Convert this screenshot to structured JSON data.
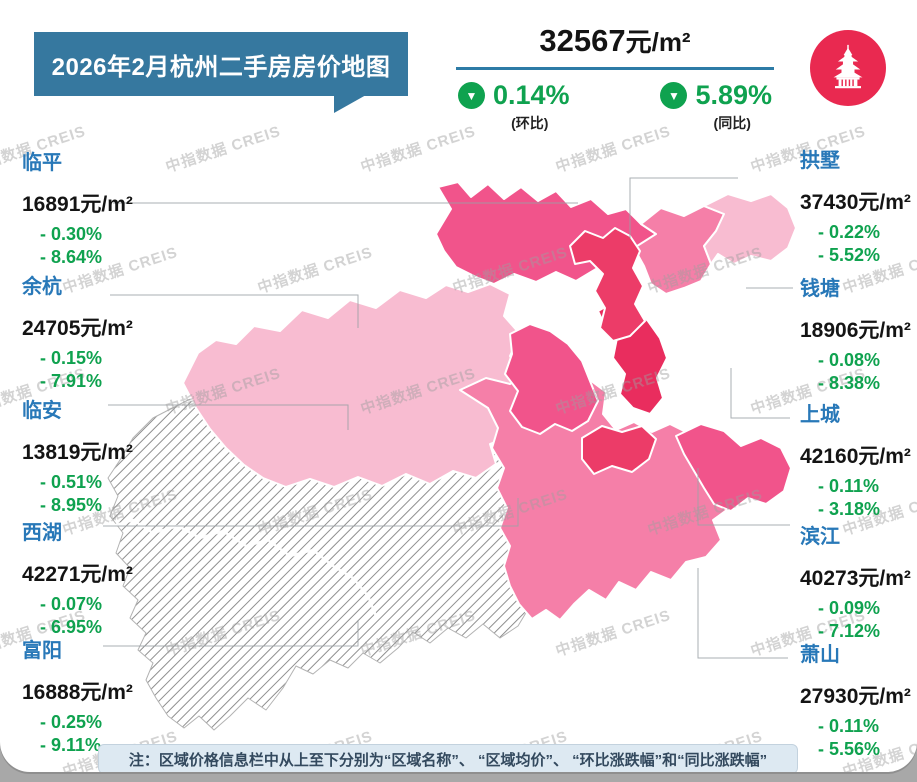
{
  "title_banner": {
    "text": "2026年2月杭州二手房房价地图"
  },
  "logo": {
    "label": "杭州雷峰塔标志"
  },
  "icons": {
    "down_arrow": "▼"
  },
  "city_summary": {
    "price_value": "32567",
    "price_unit": "元/m²",
    "mom": {
      "value": "0.14%",
      "label": "(环比)"
    },
    "yoy": {
      "value": "5.89%",
      "label": "(同比)"
    }
  },
  "watermark": {
    "text": "中指数据 CREIS"
  },
  "districts": {
    "left": [
      {
        "name": "临平",
        "price": "16891元/m²",
        "mom": "- 0.30%",
        "yoy": "- 8.64%"
      },
      {
        "name": "余杭",
        "price": "24705元/m²",
        "mom": "- 0.15%",
        "yoy": "- 7.91%"
      },
      {
        "name": "临安",
        "price": "13819元/m²",
        "mom": "- 0.51%",
        "yoy": "- 8.95%"
      },
      {
        "name": "西湖",
        "price": "42271元/m²",
        "mom": "- 0.07%",
        "yoy": "- 6.95%"
      },
      {
        "name": "富阳",
        "price": "16888元/m²",
        "mom": "- 0.25%",
        "yoy": "- 9.11%"
      }
    ],
    "right": [
      {
        "name": "拱墅",
        "price": "37430元/m²",
        "mom": "- 0.22%",
        "yoy": "- 5.52%"
      },
      {
        "name": "钱塘",
        "price": "18906元/m²",
        "mom": "- 0.08%",
        "yoy": "- 8.38%"
      },
      {
        "name": "上城",
        "price": "42160元/m²",
        "mom": "- 0.11%",
        "yoy": "- 3.18%"
      },
      {
        "name": "滨江",
        "price": "40273元/m²",
        "mom": "- 0.09%",
        "yoy": "- 7.12%"
      },
      {
        "name": "萧山",
        "price": "27930元/m²",
        "mom": "- 0.11%",
        "yoy": "- 5.56%"
      }
    ]
  },
  "footnote": {
    "text": "注：区域价格信息栏中从上至下分别为“区域名称”、 “区域均价”、 “环比涨跌幅”和“同比涨跌幅”"
  },
  "map": {
    "palette": {
      "light": "#f8bcd1",
      "medium": "#f57fa8",
      "medium_dark": "#f1548b",
      "dark": "#ec3c68",
      "darkest": "#e92d5e"
    },
    "hatched_meaning": "西部区域（临安、富阳方向）以灰色斜线填充"
  },
  "colors": {
    "banner_teal": "#36789f",
    "district_blue": "#2878b8",
    "stat_green": "#0fa24f",
    "logo_pink": "#e92950"
  },
  "chart_data": {
    "type": "choropleth_map",
    "title": "2026年2月杭州二手房房价地图",
    "unit": "元/m²",
    "city_average": {
      "price": 32567,
      "mom_pct": -0.14,
      "yoy_pct": -5.89
    },
    "regions": [
      {
        "name": "临平",
        "price": 16891,
        "mom_pct": -0.3,
        "yoy_pct": -8.64
      },
      {
        "name": "余杭",
        "price": 24705,
        "mom_pct": -0.15,
        "yoy_pct": -7.91
      },
      {
        "name": "临安",
        "price": 13819,
        "mom_pct": -0.51,
        "yoy_pct": -8.95
      },
      {
        "name": "西湖",
        "price": 42271,
        "mom_pct": -0.07,
        "yoy_pct": -6.95
      },
      {
        "name": "富阳",
        "price": 16888,
        "mom_pct": -0.25,
        "yoy_pct": -9.11
      },
      {
        "name": "拱墅",
        "price": 37430,
        "mom_pct": -0.22,
        "yoy_pct": -5.52
      },
      {
        "name": "钱塘",
        "price": 18906,
        "mom_pct": -0.08,
        "yoy_pct": -8.38
      },
      {
        "name": "上城",
        "price": 42160,
        "mom_pct": -0.11,
        "yoy_pct": -3.18
      },
      {
        "name": "滨江",
        "price": 40273,
        "mom_pct": -0.09,
        "yoy_pct": -7.12
      },
      {
        "name": "萧山",
        "price": 27930,
        "mom_pct": -0.11,
        "yoy_pct": -5.56
      }
    ]
  }
}
